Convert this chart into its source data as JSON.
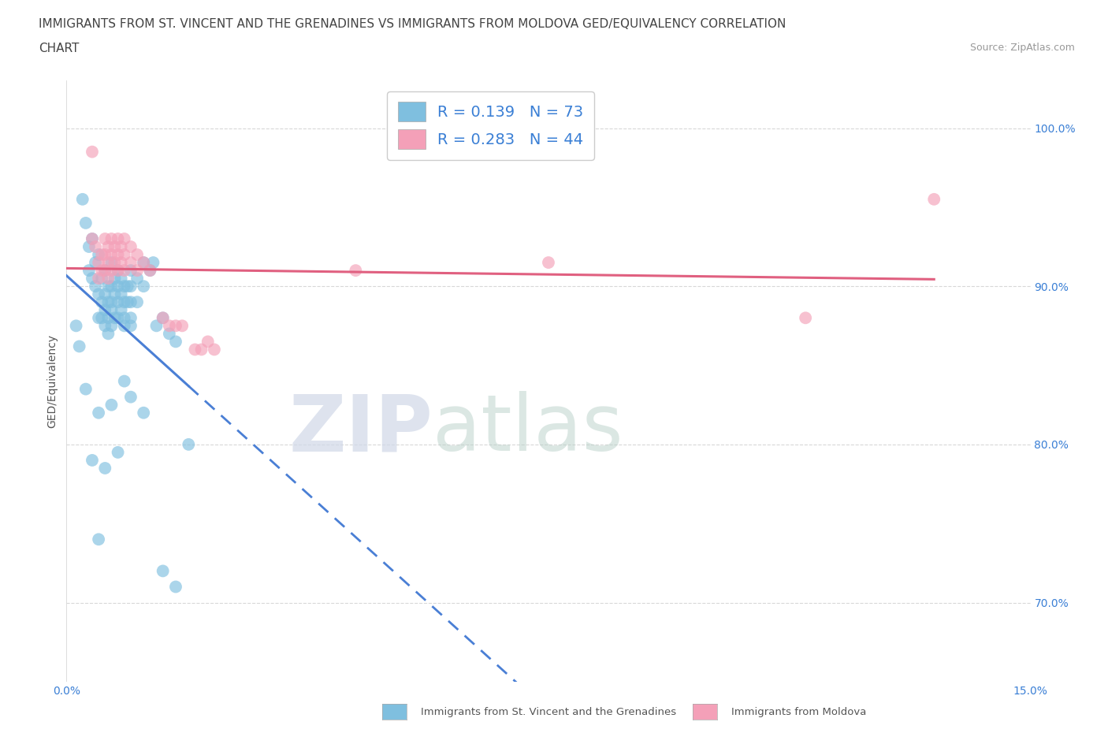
{
  "title_line1": "IMMIGRANTS FROM ST. VINCENT AND THE GRENADINES VS IMMIGRANTS FROM MOLDOVA GED/EQUIVALENCY CORRELATION",
  "title_line2": "CHART",
  "source_text": "Source: ZipAtlas.com",
  "ylabel": "GED/Equivalency",
  "xlim": [
    0.0,
    15.0
  ],
  "ylim": [
    65.0,
    103.0
  ],
  "x_tick_labels": [
    "0.0%",
    "15.0%"
  ],
  "y_ticks": [
    70.0,
    80.0,
    90.0,
    100.0
  ],
  "y_tick_labels": [
    "70.0%",
    "80.0%",
    "90.0%",
    "100.0%"
  ],
  "blue_color": "#7fbfdf",
  "pink_color": "#f4a0b8",
  "blue_line_color": "#4a7fd5",
  "pink_line_color": "#e06080",
  "blue_R": 0.139,
  "blue_N": 73,
  "pink_R": 0.283,
  "pink_N": 44,
  "blue_scatter": [
    [
      0.15,
      87.5
    ],
    [
      0.2,
      86.2
    ],
    [
      0.25,
      95.5
    ],
    [
      0.3,
      94.0
    ],
    [
      0.35,
      92.5
    ],
    [
      0.35,
      91.0
    ],
    [
      0.4,
      93.0
    ],
    [
      0.4,
      90.5
    ],
    [
      0.45,
      91.5
    ],
    [
      0.45,
      90.0
    ],
    [
      0.5,
      92.0
    ],
    [
      0.5,
      89.5
    ],
    [
      0.5,
      88.0
    ],
    [
      0.55,
      90.5
    ],
    [
      0.55,
      89.0
    ],
    [
      0.55,
      88.0
    ],
    [
      0.6,
      91.0
    ],
    [
      0.6,
      89.5
    ],
    [
      0.6,
      88.5
    ],
    [
      0.6,
      87.5
    ],
    [
      0.65,
      90.0
    ],
    [
      0.65,
      89.0
    ],
    [
      0.65,
      88.0
    ],
    [
      0.65,
      87.0
    ],
    [
      0.7,
      91.5
    ],
    [
      0.7,
      90.0
    ],
    [
      0.7,
      89.0
    ],
    [
      0.7,
      88.5
    ],
    [
      0.7,
      87.5
    ],
    [
      0.75,
      90.5
    ],
    [
      0.75,
      89.5
    ],
    [
      0.75,
      88.0
    ],
    [
      0.8,
      91.0
    ],
    [
      0.8,
      90.0
    ],
    [
      0.8,
      89.0
    ],
    [
      0.8,
      88.0
    ],
    [
      0.85,
      90.5
    ],
    [
      0.85,
      89.5
    ],
    [
      0.85,
      88.5
    ],
    [
      0.9,
      90.0
    ],
    [
      0.9,
      89.0
    ],
    [
      0.9,
      88.0
    ],
    [
      0.9,
      87.5
    ],
    [
      0.95,
      90.0
    ],
    [
      0.95,
      89.0
    ],
    [
      1.0,
      91.0
    ],
    [
      1.0,
      90.0
    ],
    [
      1.0,
      89.0
    ],
    [
      1.0,
      88.0
    ],
    [
      1.0,
      87.5
    ],
    [
      1.1,
      90.5
    ],
    [
      1.1,
      89.0
    ],
    [
      1.2,
      91.5
    ],
    [
      1.2,
      90.0
    ],
    [
      1.3,
      91.0
    ],
    [
      1.35,
      91.5
    ],
    [
      1.4,
      87.5
    ],
    [
      1.5,
      88.0
    ],
    [
      1.6,
      87.0
    ],
    [
      1.7,
      86.5
    ],
    [
      0.3,
      83.5
    ],
    [
      0.5,
      82.0
    ],
    [
      0.7,
      82.5
    ],
    [
      0.9,
      84.0
    ],
    [
      1.0,
      83.0
    ],
    [
      1.2,
      82.0
    ],
    [
      0.4,
      79.0
    ],
    [
      0.6,
      78.5
    ],
    [
      0.8,
      79.5
    ],
    [
      1.5,
      72.0
    ],
    [
      1.7,
      71.0
    ],
    [
      1.9,
      80.0
    ],
    [
      0.5,
      74.0
    ]
  ],
  "pink_scatter": [
    [
      0.4,
      98.5
    ],
    [
      0.4,
      93.0
    ],
    [
      0.45,
      92.5
    ],
    [
      0.5,
      91.5
    ],
    [
      0.5,
      90.5
    ],
    [
      0.55,
      92.0
    ],
    [
      0.55,
      91.0
    ],
    [
      0.6,
      93.0
    ],
    [
      0.6,
      92.0
    ],
    [
      0.6,
      91.0
    ],
    [
      0.65,
      92.5
    ],
    [
      0.65,
      91.5
    ],
    [
      0.65,
      90.5
    ],
    [
      0.7,
      93.0
    ],
    [
      0.7,
      92.0
    ],
    [
      0.7,
      91.0
    ],
    [
      0.75,
      92.5
    ],
    [
      0.75,
      91.5
    ],
    [
      0.8,
      93.0
    ],
    [
      0.8,
      92.0
    ],
    [
      0.8,
      91.0
    ],
    [
      0.85,
      92.5
    ],
    [
      0.85,
      91.5
    ],
    [
      0.9,
      93.0
    ],
    [
      0.9,
      92.0
    ],
    [
      0.9,
      91.0
    ],
    [
      1.0,
      92.5
    ],
    [
      1.0,
      91.5
    ],
    [
      1.1,
      92.0
    ],
    [
      1.1,
      91.0
    ],
    [
      1.2,
      91.5
    ],
    [
      1.3,
      91.0
    ],
    [
      1.5,
      88.0
    ],
    [
      1.6,
      87.5
    ],
    [
      1.7,
      87.5
    ],
    [
      1.8,
      87.5
    ],
    [
      2.0,
      86.0
    ],
    [
      2.1,
      86.0
    ],
    [
      2.2,
      86.5
    ],
    [
      2.3,
      86.0
    ],
    [
      4.5,
      91.0
    ],
    [
      7.5,
      91.5
    ],
    [
      11.5,
      88.0
    ],
    [
      13.5,
      95.5
    ]
  ],
  "watermark_zip": "ZIP",
  "watermark_atlas": "atlas",
  "grid_color": "#d8d8d8",
  "title_fontsize": 11,
  "axis_label_fontsize": 10,
  "tick_fontsize": 10,
  "legend_fontsize": 14,
  "bottom_legend_blue": "Immigrants from St. Vincent and the Grenadines",
  "bottom_legend_pink": "Immigrants from Moldova"
}
